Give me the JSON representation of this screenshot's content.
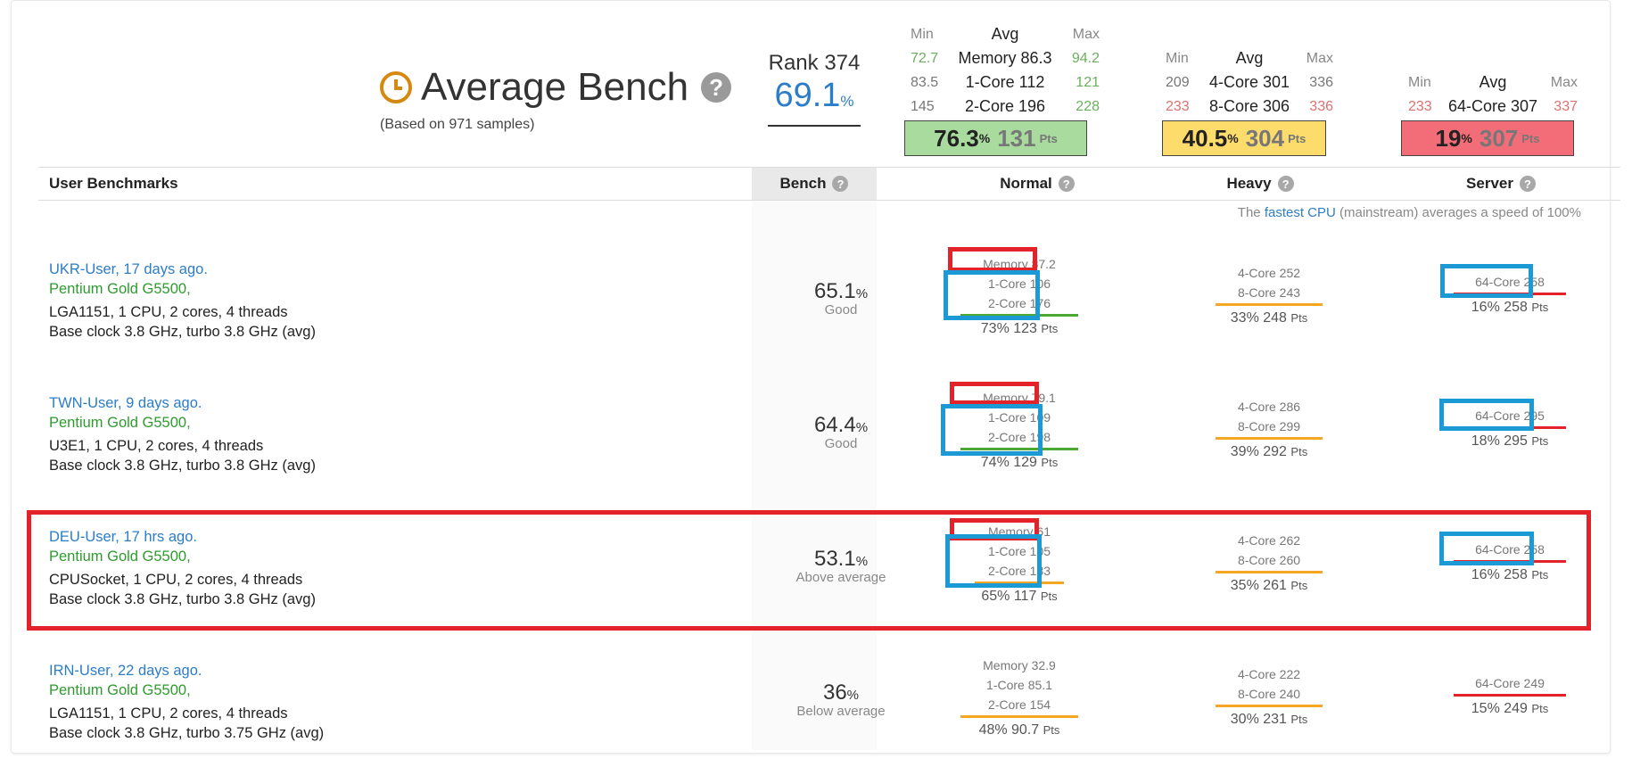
{
  "header": {
    "title": "Average Bench",
    "samples_note": "(Based on 971 samples)",
    "rank_label": "Rank 374",
    "rank_value": "69.1",
    "rank_pct_sym": "%"
  },
  "summary": {
    "mma_head": {
      "min": "Min",
      "avg": "Avg",
      "max": "Max"
    },
    "normal": {
      "rows": [
        {
          "min": "72.7",
          "label": "Memory 86.3",
          "max": "94.2"
        },
        {
          "min": "83.5",
          "label": "1-Core 112",
          "max": "121"
        },
        {
          "min": "145",
          "label": "2-Core 196",
          "max": "228"
        }
      ],
      "pct": "76.3",
      "pts": "131",
      "color": "#aadb9e"
    },
    "heavy": {
      "rows": [
        {
          "min": "209",
          "label": "4-Core 301",
          "max": "336"
        },
        {
          "min": "233",
          "label": "8-Core 306",
          "max": "336"
        }
      ],
      "pct": "40.5",
      "pts": "304",
      "color": "#fedc6b"
    },
    "server": {
      "rows": [
        {
          "min": "233",
          "label": "64-Core 307",
          "max": "337"
        }
      ],
      "pct": "19",
      "pts": "307",
      "color": "#f26d78"
    },
    "pct_sym": "%",
    "pts_sym": "Pts"
  },
  "table": {
    "headers": {
      "user": "User Benchmarks",
      "bench": "Bench",
      "normal": "Normal",
      "heavy": "Heavy",
      "server": "Server"
    },
    "fastest_note_pre": "The",
    "fastest_note_link": "fastest CPU",
    "fastest_note_post": "(mainstream) averages a speed of 100%"
  },
  "rows": [
    {
      "user": "UKR-User, 17 days ago.",
      "cpu": "Pentium Gold G5500,",
      "details": "LGA1151, 1 CPU, 2 cores, 4 threads",
      "clock": "Base clock 3.8 GHz, turbo 3.8 GHz (avg)",
      "bench": "65.1",
      "rating": "Good",
      "normal": {
        "memory": "Memory 87.2",
        "core1": "1-Core 106",
        "core2": "2-Core 176",
        "sum": "73% 123",
        "bar": "#4aa833"
      },
      "heavy": {
        "core4": "4-Core 252",
        "core8": "8-Core 243",
        "sum": "33% 248",
        "bar": "#f5a623"
      },
      "server": {
        "core64": "64-Core 258",
        "sum": "16% 258",
        "bar": "#e3222a"
      }
    },
    {
      "user": "TWN-User, 9 days ago.",
      "cpu": "Pentium Gold G5500,",
      "details": "U3E1, 1 CPU, 2 cores, 4 threads",
      "clock": "Base clock 3.8 GHz, turbo 3.8 GHz (avg)",
      "bench": "64.4",
      "rating": "Good",
      "normal": {
        "memory": "Memory 79.1",
        "core1": "1-Core 109",
        "core2": "2-Core 198",
        "sum": "74% 129",
        "bar": "#4aa833"
      },
      "heavy": {
        "core4": "4-Core 286",
        "core8": "8-Core 299",
        "sum": "39% 292",
        "bar": "#f5a623"
      },
      "server": {
        "core64": "64-Core 295",
        "sum": "18% 295",
        "bar": "#e3222a"
      }
    },
    {
      "user": "DEU-User, 17 hrs ago.",
      "cpu": "Pentium Gold G5500,",
      "details": "CPUSocket, 1 CPU, 2 cores, 4 threads",
      "clock": "Base clock 3.8 GHz, turbo 3.8 GHz (avg)",
      "bench": "53.1",
      "rating": "Above average",
      "normal": {
        "memory": "Memory 61",
        "core1": "1-Core 105",
        "core2": "2-Core 183",
        "sum": "65% 117",
        "bar": "#f5a623"
      },
      "heavy": {
        "core4": "4-Core 262",
        "core8": "8-Core 260",
        "sum": "35% 261",
        "bar": "#f5a623"
      },
      "server": {
        "core64": "64-Core 258",
        "sum": "16% 258",
        "bar": "#e3222a"
      }
    },
    {
      "user": "IRN-User, 22 days ago.",
      "cpu": "Pentium Gold G5500,",
      "details": "LGA1151, 1 CPU, 2 cores, 4 threads",
      "clock": "Base clock 3.8 GHz, turbo 3.75 GHz (avg)",
      "bench": "36",
      "rating": "Below average",
      "normal": {
        "memory": "Memory 32.9",
        "core1": "1-Core 85.1",
        "core2": "2-Core 154",
        "sum": "48% 90.7",
        "bar": "#f5a623"
      },
      "heavy": {
        "core4": "4-Core 222",
        "core8": "8-Core 240",
        "sum": "30% 231",
        "bar": "#f5a623"
      },
      "server": {
        "core64": "64-Core 249",
        "sum": "15% 249",
        "bar": "#e3222a"
      }
    }
  ],
  "units": {
    "pct": "%",
    "pts": "Pts"
  }
}
